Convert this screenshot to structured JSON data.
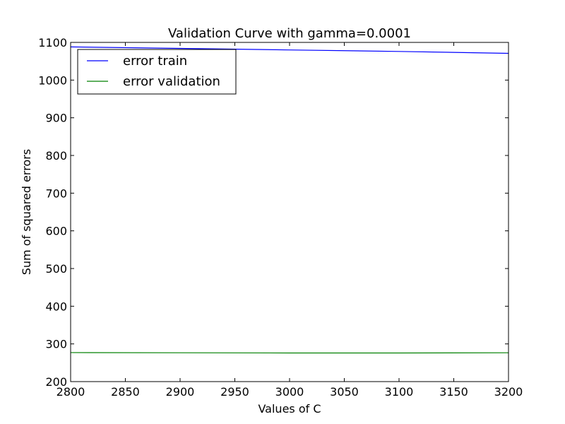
{
  "chart_data": {
    "type": "line",
    "title": "Validation Curve with gamma=0.0001",
    "xlabel": "Values of C",
    "ylabel": "Sum of squared errors",
    "xlim": [
      2800,
      3200
    ],
    "ylim": [
      200,
      1100
    ],
    "xticks": [
      2800,
      2850,
      2900,
      2950,
      3000,
      3050,
      3100,
      3150,
      3200
    ],
    "yticks": [
      200,
      300,
      400,
      500,
      600,
      700,
      800,
      900,
      1000,
      1100
    ],
    "grid": false,
    "legend_position": "top-left",
    "series": [
      {
        "name": "error train",
        "color": "#0000ff",
        "x": [
          2800,
          2900,
          3000,
          3100,
          3200
        ],
        "values": [
          1088,
          1084,
          1080,
          1076,
          1071
        ]
      },
      {
        "name": "error validation",
        "color": "#008000",
        "x": [
          2800,
          2900,
          3000,
          3100,
          3200
        ],
        "values": [
          277,
          276.5,
          276,
          276,
          276.5
        ]
      }
    ]
  }
}
